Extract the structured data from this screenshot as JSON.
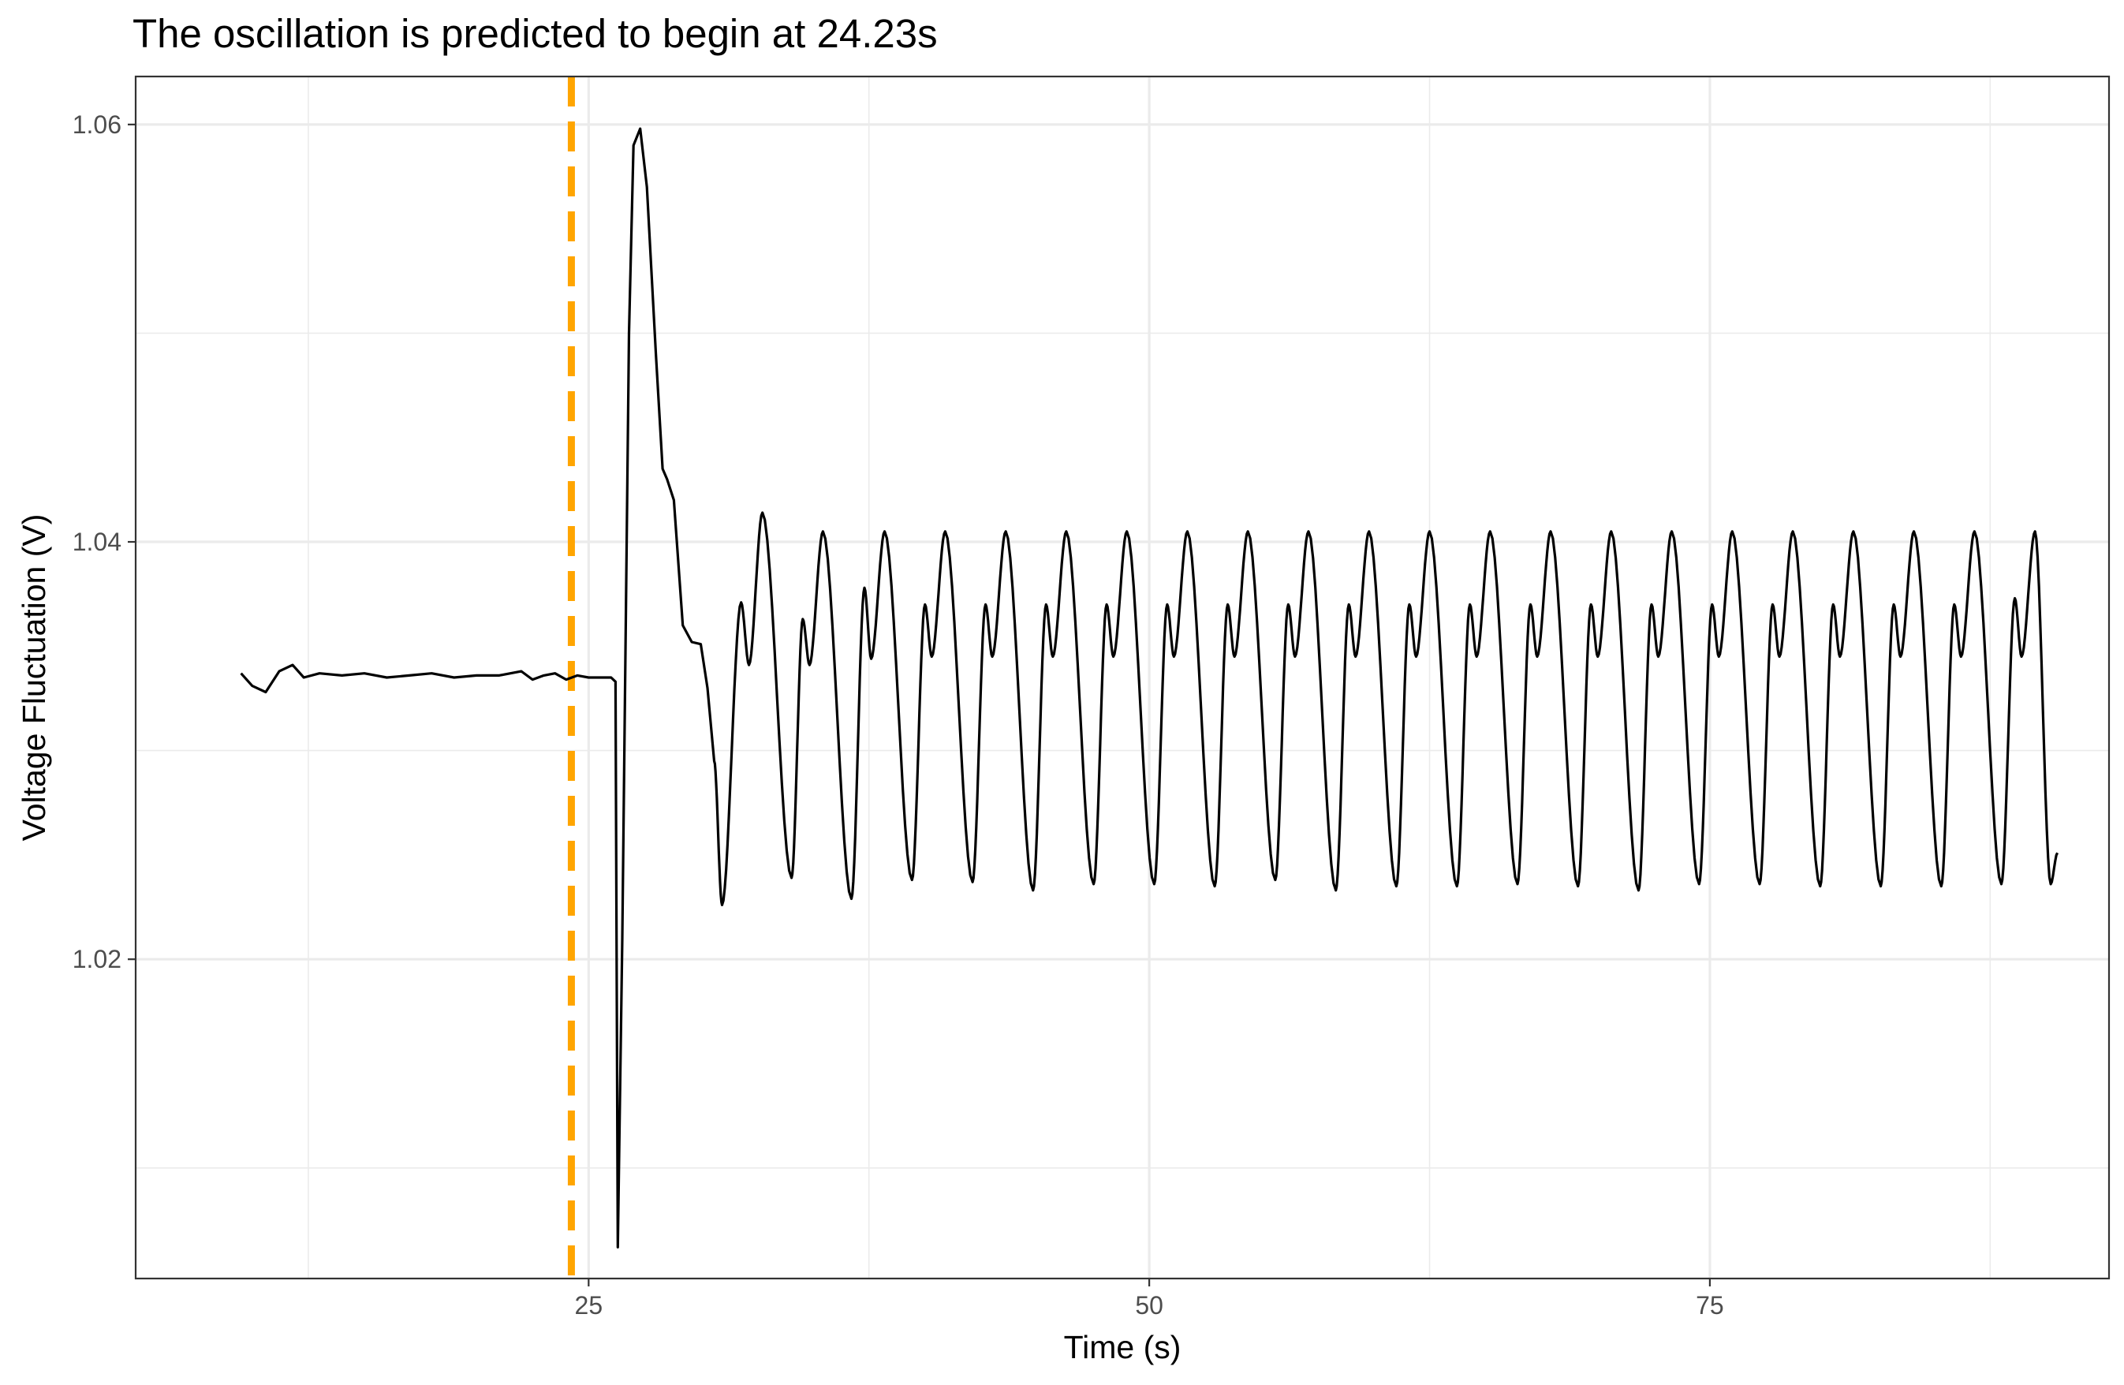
{
  "chart_data": {
    "type": "line",
    "title": "The oscillation is predicted to begin at 24.23s",
    "xlabel": "Time (s)",
    "ylabel": "Voltage Fluctuation (V)",
    "xlim": [
      4.8,
      92.8
    ],
    "ylim": [
      1.0047,
      1.0623
    ],
    "x_ticks": [
      25,
      50,
      75
    ],
    "x_tick_labels": [
      "25",
      "50",
      "75"
    ],
    "x_minor_ticks": [
      12.5,
      37.5,
      62.5,
      87.5
    ],
    "y_ticks": [
      1.02,
      1.04,
      1.06
    ],
    "y_tick_labels": [
      "1.02",
      "1.04",
      "1.06"
    ],
    "y_minor_ticks": [
      1.01,
      1.03,
      1.05
    ],
    "grid": true,
    "legend": "none",
    "colors": {
      "series": "#000000",
      "marker_line": "#FFA500",
      "grid": "#ebebeb",
      "panel_border": "#333333"
    },
    "vertical_line": {
      "x": 24.23,
      "style": "dashed",
      "color": "#FFA500"
    },
    "series": [
      {
        "x": [
          9.5,
          10,
          10.6,
          11.2,
          11.8,
          12.3,
          13,
          14,
          15,
          16,
          17,
          18,
          19,
          20,
          21,
          22,
          22.5,
          23,
          23.5,
          24,
          24.5,
          25,
          26,
          26.2,
          26.3,
          26.5,
          26.8,
          27,
          27.3,
          27.6,
          28,
          28.3,
          28.5,
          28.8,
          29.2,
          29.6,
          30,
          30.3,
          30.6
        ],
        "y": [
          1.0337,
          1.0331,
          1.0328,
          1.0338,
          1.0341,
          1.0335,
          1.0337,
          1.0336,
          1.0337,
          1.0335,
          1.0336,
          1.0337,
          1.0335,
          1.0336,
          1.0336,
          1.0338,
          1.0334,
          1.0336,
          1.0337,
          1.0334,
          1.0336,
          1.0335,
          1.0335,
          1.0333,
          1.0062,
          1.021,
          1.05,
          1.059,
          1.0598,
          1.057,
          1.049,
          1.0435,
          1.043,
          1.042,
          1.036,
          1.0352,
          1.0351,
          1.033,
          1.0295
        ]
      }
    ]
  }
}
